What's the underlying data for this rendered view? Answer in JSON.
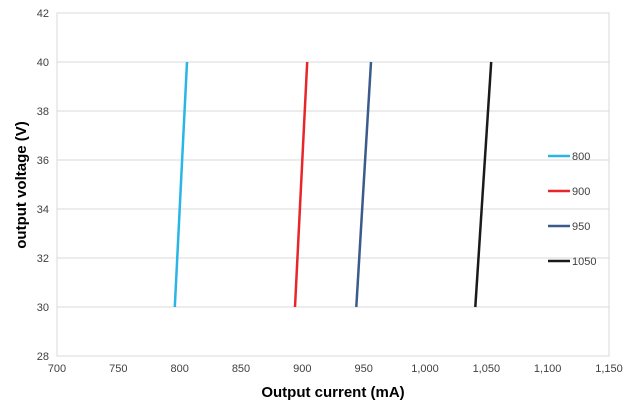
{
  "chart_data": {
    "type": "line",
    "title": "",
    "xlabel": "Output current (mA)",
    "ylabel": "output voltage (V)",
    "xlim": [
      700,
      1150
    ],
    "ylim": [
      28,
      42
    ],
    "x_ticks": [
      700,
      750,
      800,
      850,
      900,
      950,
      1000,
      1050,
      1100,
      1150
    ],
    "x_tick_labels": [
      "700",
      "750",
      "800",
      "850",
      "900",
      "950",
      "1,000",
      "1,050",
      "1,100",
      "1,150"
    ],
    "y_ticks": [
      28,
      30,
      32,
      34,
      36,
      38,
      40,
      42
    ],
    "y_tick_labels": [
      "28",
      "30",
      "32",
      "34",
      "36",
      "38",
      "40",
      "42"
    ],
    "grid": "horizontal",
    "legend_position": "right",
    "series": [
      {
        "name": "800",
        "color": "#29b6e6",
        "points": [
          [
            796,
            30
          ],
          [
            806,
            40
          ]
        ]
      },
      {
        "name": "900",
        "color": "#e8262a",
        "points": [
          [
            894,
            30
          ],
          [
            904,
            40
          ]
        ]
      },
      {
        "name": "950",
        "color": "#3b5b8c",
        "points": [
          [
            944,
            30
          ],
          [
            956,
            40
          ]
        ]
      },
      {
        "name": "1050",
        "color": "#1a1a1a",
        "points": [
          [
            1041,
            30
          ],
          [
            1054,
            40
          ]
        ]
      }
    ]
  }
}
